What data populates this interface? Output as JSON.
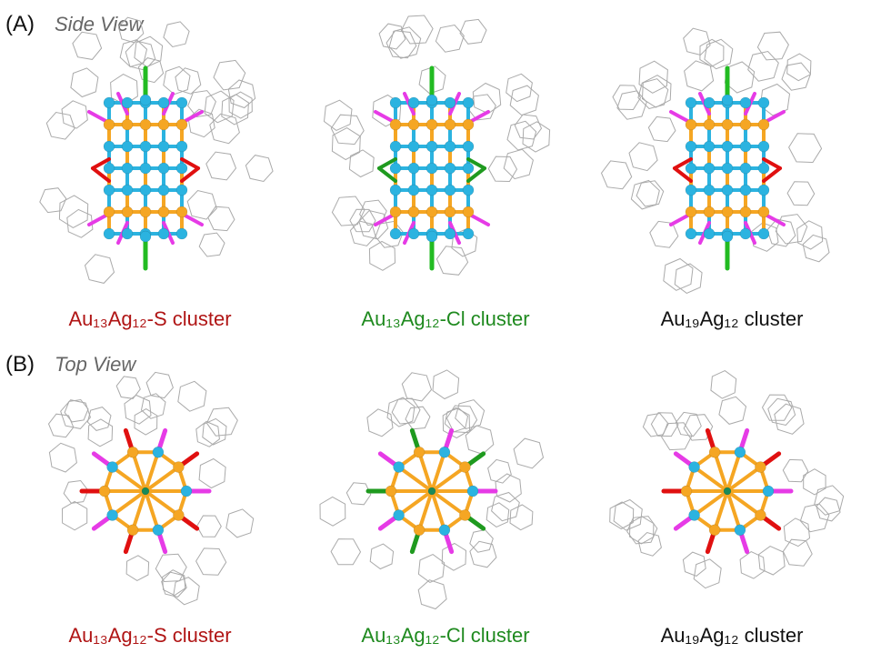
{
  "panels": [
    {
      "label": "(A)",
      "title": "Side View",
      "clusters": [
        "Au₁₃Ag₁₂-S cluster",
        "Au₁₃Ag₁₂-Cl cluster",
        "Au₁₉Ag₁₂ cluster"
      ]
    },
    {
      "label": "(B)",
      "title": "Top View",
      "clusters": [
        "Au₁₃Ag₁₂-S cluster",
        "Au₁₃Ag₁₂-Cl cluster",
        "Au₁₉Ag₁₂ cluster"
      ]
    }
  ]
}
